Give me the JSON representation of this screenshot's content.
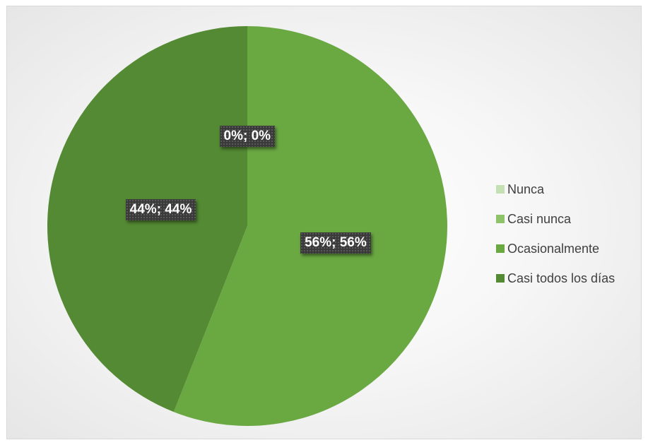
{
  "chart_data": {
    "type": "pie",
    "categories": [
      "Nunca",
      "Casi nunca",
      "Ocasionalmente",
      "Casi todos los días"
    ],
    "values": [
      0,
      0,
      56,
      44
    ],
    "colors": [
      "#c5e0b4",
      "#8fc36a",
      "#6aa842",
      "#548a33"
    ],
    "data_labels": [
      "",
      "",
      "56%; 56%",
      "44%; 44%"
    ],
    "zero_label": "0%; 0%",
    "legend_position": "right",
    "start_angle": "12 o'clock",
    "direction": "clockwise"
  }
}
